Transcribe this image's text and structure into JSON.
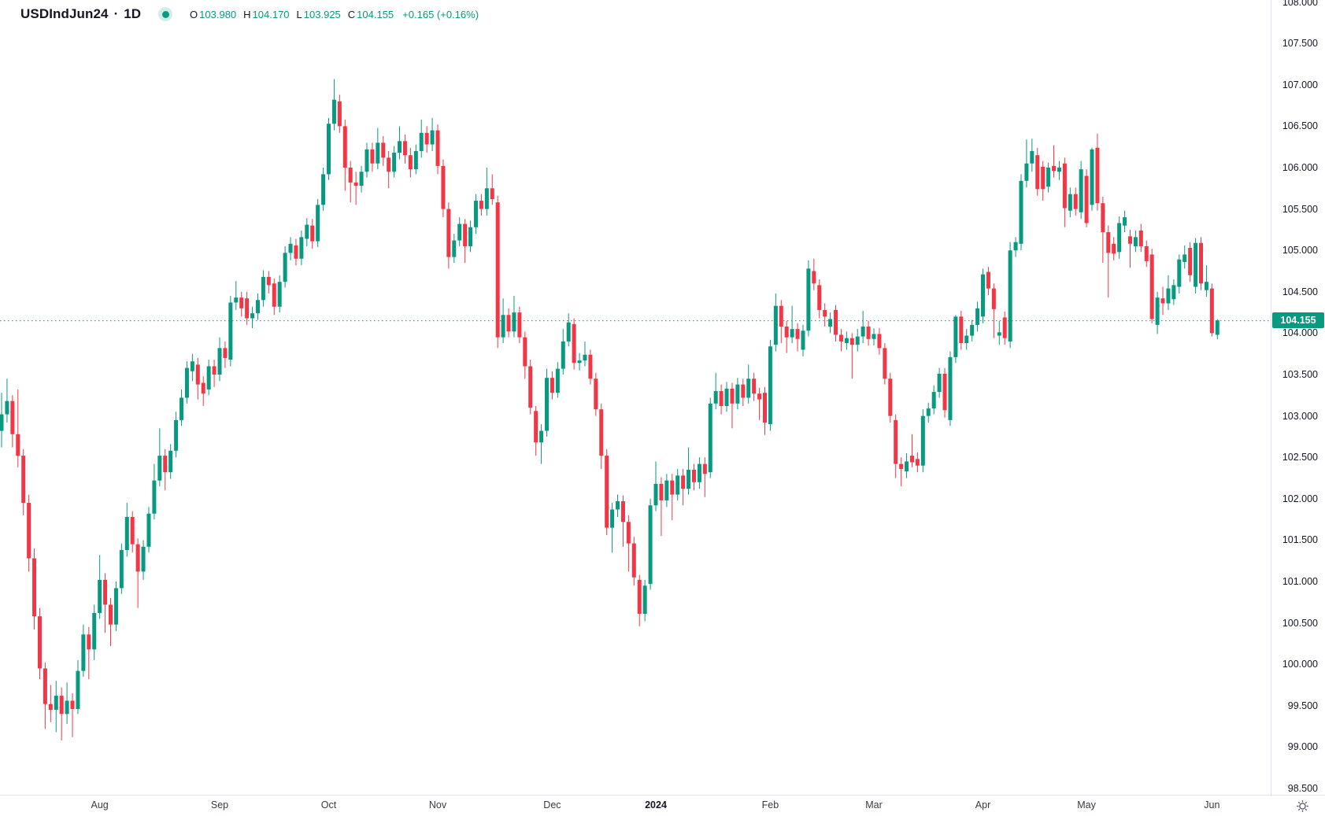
{
  "header": {
    "symbol": "USDIndJun24",
    "separator": "·",
    "interval": "1D",
    "ohlc": [
      {
        "label": "O",
        "value": "103.980"
      },
      {
        "label": "H",
        "value": "104.170"
      },
      {
        "label": "L",
        "value": "103.925"
      },
      {
        "label": "C",
        "value": "104.155"
      }
    ],
    "change": "+0.165 (+0.16%)",
    "marker_icon": "market-status-dot"
  },
  "chart_data": {
    "type": "candlestick",
    "title": "USDIndJun24 1D candlestick chart",
    "up_color": "#089981",
    "down_color": "#f23645",
    "dotted_line_color": "#089981",
    "axis_text_color": "#131722",
    "separator_color": "#e0e3eb",
    "last_price": 104.155,
    "last_price_label": "104.155",
    "y_ticks": [
      108.0,
      107.5,
      107.0,
      106.5,
      106.0,
      105.5,
      105.0,
      104.5,
      104.0,
      103.5,
      103.0,
      102.5,
      102.0,
      101.5,
      101.0,
      100.5,
      100.0,
      99.5,
      99.0,
      98.5
    ],
    "y_range": [
      98.42,
      108.02
    ],
    "grid": false,
    "legend_position": "none",
    "x_ticks": [
      {
        "label": "Aug",
        "index": 18,
        "year": false
      },
      {
        "label": "Sep",
        "index": 40,
        "year": false
      },
      {
        "label": "Oct",
        "index": 60,
        "year": false
      },
      {
        "label": "Nov",
        "index": 80,
        "year": false
      },
      {
        "label": "Dec",
        "index": 101,
        "year": false
      },
      {
        "label": "2024",
        "index": 120,
        "year": true
      },
      {
        "label": "Feb",
        "index": 141,
        "year": false
      },
      {
        "label": "Mar",
        "index": 160,
        "year": false
      },
      {
        "label": "Apr",
        "index": 180,
        "year": false
      },
      {
        "label": "May",
        "index": 199,
        "year": false
      },
      {
        "label": "Jun",
        "index": 222,
        "year": false
      }
    ],
    "candles": [
      [
        102.82,
        103.28,
        102.62,
        103.02
      ],
      [
        103.02,
        103.45,
        102.92,
        103.18
      ],
      [
        103.18,
        103.25,
        102.62,
        102.78
      ],
      [
        102.78,
        103.32,
        102.38,
        102.52
      ],
      [
        102.52,
        102.6,
        101.8,
        101.95
      ],
      [
        101.95,
        102.05,
        101.12,
        101.28
      ],
      [
        101.28,
        101.4,
        100.42,
        100.58
      ],
      [
        100.58,
        100.68,
        99.82,
        99.95
      ],
      [
        99.95,
        100.02,
        99.22,
        99.52
      ],
      [
        99.52,
        99.75,
        99.3,
        99.45
      ],
      [
        99.45,
        99.8,
        99.18,
        99.62
      ],
      [
        99.62,
        99.72,
        99.08,
        99.4
      ],
      [
        99.4,
        99.78,
        99.28,
        99.56
      ],
      [
        99.56,
        99.65,
        99.12,
        99.46
      ],
      [
        99.46,
        100.05,
        99.4,
        99.92
      ],
      [
        99.92,
        100.48,
        99.85,
        100.36
      ],
      [
        100.36,
        100.45,
        99.82,
        100.18
      ],
      [
        100.18,
        100.72,
        100.05,
        100.62
      ],
      [
        100.62,
        101.32,
        100.55,
        101.02
      ],
      [
        101.02,
        101.1,
        100.38,
        100.72
      ],
      [
        100.72,
        100.8,
        100.22,
        100.48
      ],
      [
        100.48,
        101.0,
        100.4,
        100.92
      ],
      [
        100.92,
        101.46,
        100.85,
        101.38
      ],
      [
        101.38,
        101.95,
        101.3,
        101.78
      ],
      [
        101.78,
        101.85,
        101.35,
        101.45
      ],
      [
        101.45,
        101.52,
        100.68,
        101.12
      ],
      [
        101.12,
        101.5,
        101.02,
        101.42
      ],
      [
        101.42,
        101.9,
        101.35,
        101.82
      ],
      [
        101.82,
        102.42,
        101.75,
        102.22
      ],
      [
        102.22,
        102.85,
        102.15,
        102.52
      ],
      [
        102.52,
        102.6,
        102.1,
        102.32
      ],
      [
        102.32,
        102.66,
        102.24,
        102.58
      ],
      [
        102.58,
        103.05,
        102.5,
        102.95
      ],
      [
        102.95,
        103.32,
        102.88,
        103.22
      ],
      [
        103.22,
        103.66,
        103.15,
        103.58
      ],
      [
        103.54,
        103.75,
        103.42,
        103.66
      ],
      [
        103.62,
        103.7,
        103.2,
        103.38
      ],
      [
        103.4,
        103.48,
        103.12,
        103.27
      ],
      [
        103.32,
        103.68,
        103.25,
        103.6
      ],
      [
        103.6,
        103.68,
        103.35,
        103.5
      ],
      [
        103.5,
        103.95,
        103.42,
        103.82
      ],
      [
        103.82,
        103.9,
        103.58,
        103.7
      ],
      [
        103.68,
        104.45,
        103.6,
        104.37
      ],
      [
        104.37,
        104.63,
        104.28,
        104.43
      ],
      [
        104.43,
        104.5,
        104.2,
        104.3
      ],
      [
        104.42,
        104.5,
        104.1,
        104.18
      ],
      [
        104.18,
        104.32,
        104.06,
        104.24
      ],
      [
        104.24,
        104.48,
        104.16,
        104.4
      ],
      [
        104.4,
        104.76,
        104.32,
        104.68
      ],
      [
        104.68,
        104.75,
        104.48,
        104.58
      ],
      [
        104.6,
        104.66,
        104.22,
        104.32
      ],
      [
        104.32,
        104.7,
        104.25,
        104.62
      ],
      [
        104.62,
        105.05,
        104.55,
        104.97
      ],
      [
        104.97,
        105.16,
        104.88,
        105.08
      ],
      [
        105.06,
        105.14,
        104.82,
        104.9
      ],
      [
        104.9,
        105.24,
        104.82,
        105.16
      ],
      [
        105.14,
        105.39,
        105.05,
        105.31
      ],
      [
        105.3,
        105.38,
        105.02,
        105.11
      ],
      [
        105.11,
        105.62,
        105.04,
        105.55
      ],
      [
        105.55,
        106.0,
        105.48,
        105.92
      ],
      [
        105.92,
        106.6,
        105.85,
        106.53
      ],
      [
        106.53,
        107.07,
        106.45,
        106.82
      ],
      [
        106.8,
        106.88,
        106.42,
        106.5
      ],
      [
        106.5,
        106.58,
        105.72,
        106.0
      ],
      [
        106.0,
        106.08,
        105.58,
        105.82
      ],
      [
        105.82,
        105.95,
        105.55,
        105.78
      ],
      [
        105.78,
        106.02,
        105.7,
        105.95
      ],
      [
        105.95,
        106.3,
        105.88,
        106.22
      ],
      [
        106.22,
        106.3,
        105.95,
        106.05
      ],
      [
        106.05,
        106.48,
        105.98,
        106.3
      ],
      [
        106.3,
        106.38,
        106.02,
        106.12
      ],
      [
        106.12,
        106.2,
        105.75,
        105.95
      ],
      [
        105.95,
        106.26,
        105.88,
        106.18
      ],
      [
        106.18,
        106.5,
        106.1,
        106.32
      ],
      [
        106.32,
        106.4,
        106.05,
        106.15
      ],
      [
        106.15,
        106.24,
        105.88,
        105.98
      ],
      [
        105.98,
        106.28,
        105.92,
        106.2
      ],
      [
        106.2,
        106.58,
        106.12,
        106.42
      ],
      [
        106.42,
        106.5,
        106.18,
        106.28
      ],
      [
        106.28,
        106.6,
        106.2,
        106.45
      ],
      [
        106.45,
        106.52,
        105.92,
        106.02
      ],
      [
        106.02,
        106.1,
        105.4,
        105.5
      ],
      [
        105.5,
        105.58,
        104.78,
        104.92
      ],
      [
        104.92,
        105.2,
        104.85,
        105.12
      ],
      [
        105.12,
        105.4,
        105.05,
        105.32
      ],
      [
        105.32,
        105.38,
        104.85,
        105.05
      ],
      [
        105.05,
        105.36,
        104.98,
        105.28
      ],
      [
        105.28,
        105.68,
        105.2,
        105.6
      ],
      [
        105.6,
        105.68,
        105.42,
        105.5
      ],
      [
        105.5,
        106.0,
        105.42,
        105.75
      ],
      [
        105.75,
        105.92,
        105.55,
        105.62
      ],
      [
        105.58,
        105.66,
        103.82,
        103.95
      ],
      [
        103.95,
        104.42,
        103.88,
        104.22
      ],
      [
        104.22,
        104.3,
        103.95,
        104.02
      ],
      [
        104.02,
        104.45,
        103.95,
        104.25
      ],
      [
        104.25,
        104.32,
        103.88,
        103.95
      ],
      [
        103.95,
        104.02,
        103.45,
        103.6
      ],
      [
        103.6,
        103.68,
        103.02,
        103.1
      ],
      [
        103.06,
        103.12,
        102.52,
        102.68
      ],
      [
        102.68,
        102.9,
        102.42,
        102.82
      ],
      [
        102.82,
        103.57,
        102.75,
        103.46
      ],
      [
        103.46,
        103.54,
        103.2,
        103.28
      ],
      [
        103.28,
        103.65,
        103.22,
        103.57
      ],
      [
        103.57,
        104.05,
        103.5,
        103.9
      ],
      [
        103.9,
        104.24,
        103.84,
        104.13
      ],
      [
        104.11,
        104.18,
        103.56,
        103.64
      ],
      [
        103.64,
        103.76,
        103.55,
        103.67
      ],
      [
        103.67,
        103.9,
        103.6,
        103.74
      ],
      [
        103.74,
        103.8,
        103.38,
        103.45
      ],
      [
        103.45,
        103.52,
        103.0,
        103.08
      ],
      [
        103.08,
        103.15,
        102.36,
        102.52
      ],
      [
        102.52,
        102.6,
        101.56,
        101.65
      ],
      [
        101.65,
        101.95,
        101.35,
        101.87
      ],
      [
        101.87,
        102.05,
        101.78,
        101.97
      ],
      [
        101.97,
        102.04,
        101.42,
        101.72
      ],
      [
        101.72,
        101.8,
        101.12,
        101.46
      ],
      [
        101.46,
        101.54,
        100.95,
        101.05
      ],
      [
        101.02,
        101.08,
        100.46,
        100.61
      ],
      [
        100.61,
        101.02,
        100.52,
        100.95
      ],
      [
        100.97,
        102.0,
        100.9,
        101.92
      ],
      [
        101.92,
        102.45,
        101.85,
        102.18
      ],
      [
        102.18,
        102.26,
        101.55,
        101.98
      ],
      [
        101.98,
        102.3,
        101.9,
        102.22
      ],
      [
        102.22,
        102.3,
        101.74,
        102.05
      ],
      [
        102.05,
        102.36,
        101.98,
        102.28
      ],
      [
        102.28,
        102.36,
        101.92,
        102.12
      ],
      [
        102.12,
        102.62,
        102.05,
        102.35
      ],
      [
        102.35,
        102.42,
        102.1,
        102.2
      ],
      [
        102.2,
        102.5,
        102.12,
        102.42
      ],
      [
        102.42,
        102.5,
        102.02,
        102.3
      ],
      [
        102.32,
        103.22,
        102.25,
        103.15
      ],
      [
        103.15,
        103.52,
        103.08,
        103.3
      ],
      [
        103.3,
        103.38,
        103.02,
        103.12
      ],
      [
        103.12,
        103.41,
        103.05,
        103.33
      ],
      [
        103.33,
        103.4,
        102.85,
        103.15
      ],
      [
        103.15,
        103.46,
        103.08,
        103.38
      ],
      [
        103.38,
        103.45,
        103.12,
        103.22
      ],
      [
        103.22,
        103.62,
        103.15,
        103.45
      ],
      [
        103.45,
        103.52,
        103.18,
        103.27
      ],
      [
        103.27,
        103.34,
        102.95,
        103.2
      ],
      [
        103.28,
        103.35,
        102.77,
        102.92
      ],
      [
        102.9,
        103.92,
        102.82,
        103.84
      ],
      [
        103.86,
        104.48,
        103.78,
        104.33
      ],
      [
        104.33,
        104.4,
        103.88,
        104.08
      ],
      [
        104.08,
        104.15,
        103.76,
        103.95
      ],
      [
        103.95,
        104.33,
        103.88,
        104.05
      ],
      [
        104.05,
        104.12,
        103.78,
        103.93
      ],
      [
        103.8,
        104.1,
        103.72,
        104.03
      ],
      [
        104.03,
        104.88,
        103.96,
        104.78
      ],
      [
        104.75,
        104.9,
        104.52,
        104.6
      ],
      [
        104.58,
        104.65,
        104.18,
        104.28
      ],
      [
        104.28,
        104.36,
        104.08,
        104.2
      ],
      [
        104.08,
        104.25,
        104.0,
        104.17
      ],
      [
        104.28,
        104.34,
        103.9,
        103.98
      ],
      [
        103.98,
        104.05,
        103.78,
        103.9
      ],
      [
        103.88,
        104.02,
        103.8,
        103.94
      ],
      [
        103.94,
        104.0,
        103.45,
        103.86
      ],
      [
        103.86,
        104.05,
        103.78,
        103.96
      ],
      [
        103.96,
        104.27,
        103.88,
        104.08
      ],
      [
        104.08,
        104.15,
        103.85,
        103.93
      ],
      [
        103.93,
        104.06,
        103.85,
        103.99
      ],
      [
        103.99,
        104.06,
        103.74,
        103.82
      ],
      [
        103.82,
        103.88,
        103.38,
        103.45
      ],
      [
        103.45,
        103.52,
        102.92,
        103.0
      ],
      [
        102.95,
        103.02,
        102.25,
        102.42
      ],
      [
        102.42,
        102.5,
        102.15,
        102.36
      ],
      [
        102.33,
        102.55,
        102.25,
        102.45
      ],
      [
        102.52,
        102.78,
        102.38,
        102.44
      ],
      [
        102.48,
        102.56,
        102.32,
        102.4
      ],
      [
        102.4,
        103.08,
        102.32,
        103.0
      ],
      [
        103.0,
        103.16,
        102.92,
        103.09
      ],
      [
        103.09,
        103.37,
        103.02,
        103.29
      ],
      [
        103.29,
        103.58,
        103.22,
        103.51
      ],
      [
        103.51,
        103.58,
        102.98,
        103.07
      ],
      [
        102.95,
        103.78,
        102.88,
        103.71
      ],
      [
        103.71,
        104.22,
        103.64,
        104.2
      ],
      [
        104.2,
        104.27,
        103.8,
        103.88
      ],
      [
        103.88,
        104.05,
        103.8,
        103.97
      ],
      [
        103.97,
        104.16,
        103.9,
        104.1
      ],
      [
        104.1,
        104.38,
        104.02,
        104.3
      ],
      [
        104.2,
        104.78,
        104.12,
        104.71
      ],
      [
        104.74,
        104.8,
        104.46,
        104.54
      ],
      [
        104.54,
        104.6,
        103.94,
        104.29
      ],
      [
        103.97,
        104.15,
        103.86,
        104.01
      ],
      [
        104.19,
        104.26,
        103.86,
        103.94
      ],
      [
        103.9,
        105.1,
        103.82,
        105.0
      ],
      [
        105.0,
        105.16,
        104.92,
        105.1
      ],
      [
        105.08,
        105.92,
        105.0,
        105.84
      ],
      [
        105.84,
        106.34,
        105.76,
        106.05
      ],
      [
        106.05,
        106.35,
        105.95,
        106.2
      ],
      [
        106.15,
        106.24,
        105.66,
        105.74
      ],
      [
        106.01,
        106.08,
        105.6,
        105.74
      ],
      [
        105.77,
        106.06,
        105.7,
        106.0
      ],
      [
        106.02,
        106.27,
        105.88,
        105.96
      ],
      [
        105.95,
        106.08,
        105.85,
        106.0
      ],
      [
        106.05,
        106.12,
        105.28,
        105.51
      ],
      [
        105.48,
        105.76,
        105.4,
        105.68
      ],
      [
        105.68,
        105.76,
        105.42,
        105.5
      ],
      [
        105.46,
        106.08,
        105.38,
        105.98
      ],
      [
        105.9,
        105.98,
        105.28,
        105.33
      ],
      [
        105.55,
        106.24,
        105.48,
        106.22
      ],
      [
        106.24,
        106.41,
        105.48,
        105.57
      ],
      [
        105.57,
        105.65,
        104.85,
        105.22
      ],
      [
        105.22,
        105.3,
        104.43,
        104.97
      ],
      [
        105.08,
        105.16,
        104.88,
        104.96
      ],
      [
        104.98,
        105.41,
        104.9,
        105.33
      ],
      [
        105.3,
        105.48,
        105.22,
        105.4
      ],
      [
        105.17,
        105.25,
        104.79,
        105.08
      ],
      [
        105.05,
        105.24,
        104.98,
        105.16
      ],
      [
        105.24,
        105.32,
        104.98,
        105.05
      ],
      [
        105.05,
        105.12,
        104.8,
        104.87
      ],
      [
        104.95,
        105.02,
        104.12,
        104.17
      ],
      [
        104.1,
        104.5,
        103.99,
        104.43
      ],
      [
        104.42,
        104.56,
        104.22,
        104.36
      ],
      [
        104.36,
        104.7,
        104.28,
        104.54
      ],
      [
        104.41,
        104.65,
        104.34,
        104.58
      ],
      [
        104.56,
        104.95,
        104.48,
        104.89
      ],
      [
        104.86,
        105.06,
        104.78,
        104.95
      ],
      [
        105.03,
        105.1,
        104.62,
        104.7
      ],
      [
        104.56,
        105.15,
        104.48,
        105.09
      ],
      [
        105.09,
        105.16,
        104.52,
        104.6
      ],
      [
        104.52,
        104.82,
        104.44,
        104.62
      ],
      [
        104.54,
        104.6,
        103.96,
        104.0
      ],
      [
        103.98,
        104.17,
        103.925,
        104.155
      ]
    ]
  },
  "time_axis": {
    "gear_icon": "gear-icon"
  }
}
